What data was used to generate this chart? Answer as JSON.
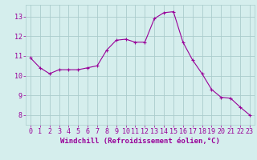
{
  "x": [
    0,
    1,
    2,
    3,
    4,
    5,
    6,
    7,
    8,
    9,
    10,
    11,
    12,
    13,
    14,
    15,
    16,
    17,
    18,
    19,
    20,
    21,
    22,
    23
  ],
  "y": [
    10.9,
    10.4,
    10.1,
    10.3,
    10.3,
    10.3,
    10.4,
    10.5,
    11.3,
    11.8,
    11.85,
    11.7,
    11.7,
    12.9,
    13.2,
    13.25,
    11.7,
    10.8,
    10.1,
    9.3,
    8.9,
    8.85,
    8.4,
    8.0
  ],
  "line_color": "#990099",
  "marker": "+",
  "marker_size": 3,
  "bg_color": "#d5eeed",
  "grid_color": "#aacccc",
  "xlabel": "Windchill (Refroidissement éolien,°C)",
  "xlabel_fontsize": 6.5,
  "tick_fontsize": 6,
  "ylim": [
    7.5,
    13.6
  ],
  "xlim": [
    -0.5,
    23.5
  ],
  "yticks": [
    8,
    9,
    10,
    11,
    12,
    13
  ],
  "xticks": [
    0,
    1,
    2,
    3,
    4,
    5,
    6,
    7,
    8,
    9,
    10,
    11,
    12,
    13,
    14,
    15,
    16,
    17,
    18,
    19,
    20,
    21,
    22,
    23
  ]
}
